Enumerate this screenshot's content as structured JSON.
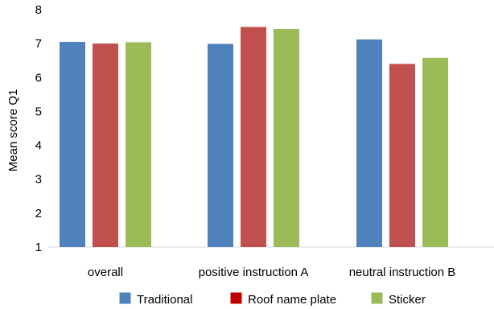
{
  "chart_data": {
    "type": "bar",
    "categories": [
      "overall",
      "positive instruction A",
      "neutral instruction B"
    ],
    "series": [
      {
        "name": "Traditional",
        "color": "#4F81BD",
        "legend_color": "#4F81BD",
        "values": [
          7.05,
          6.99,
          7.12
        ]
      },
      {
        "name": "Roof name plate",
        "color": "#C0504D",
        "legend_color": "#C00000",
        "values": [
          7.0,
          7.49,
          6.4
        ]
      },
      {
        "name": "Sticker",
        "color": "#9BBB59",
        "legend_color": "#9BBB59",
        "values": [
          7.04,
          7.43,
          6.58
        ]
      }
    ],
    "title": "",
    "xlabel": "",
    "ylabel": "Mean score Q1",
    "ylim": [
      1,
      8
    ],
    "yticks": [
      "1",
      "2",
      "3",
      "4",
      "5",
      "6",
      "7",
      "8"
    ],
    "grid": false,
    "legend_position": "bottom"
  }
}
